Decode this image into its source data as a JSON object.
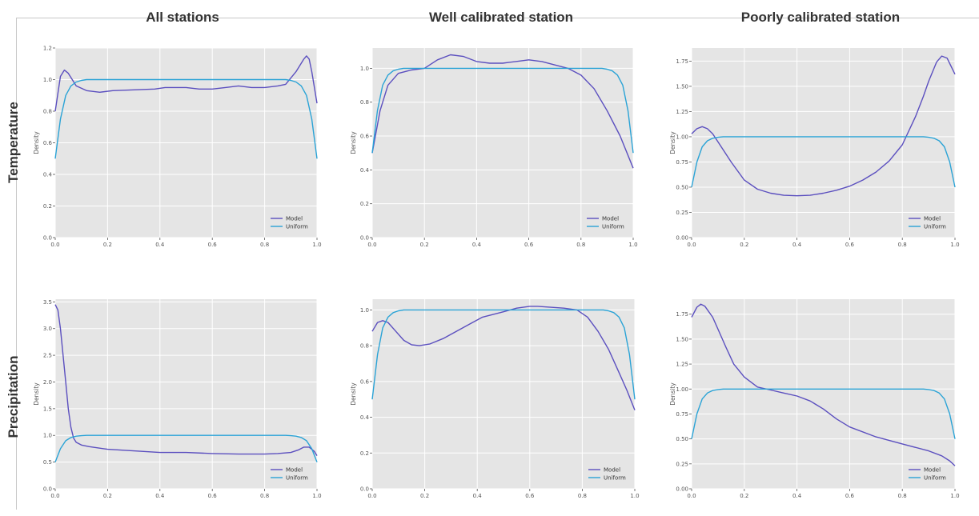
{
  "column_titles": [
    "All stations",
    "Well calibrated station",
    "Poorly calibrated station"
  ],
  "row_labels": [
    "Temperature",
    "Precipitation"
  ],
  "chart_data": [
    {
      "type": "line",
      "row": "Temperature",
      "column": "All stations",
      "xlabel": "",
      "ylabel": "Density",
      "xlim": [
        0,
        1
      ],
      "ylim": [
        0,
        1.2
      ],
      "xticks": [
        0.0,
        0.2,
        0.4,
        0.6,
        0.8,
        1.0
      ],
      "xtick_labels": [
        "0.0",
        "0.2",
        "0.4",
        "0.6",
        "0.8",
        "1.0"
      ],
      "yticks": [
        0.0,
        0.2,
        0.4,
        0.6,
        0.8,
        1.0,
        1.2
      ],
      "ytick_labels": [
        "0.0",
        "0.2",
        "0.4",
        "0.6",
        "0.8",
        "1.0",
        "1.2"
      ],
      "grid": true,
      "legend": "bottom-right",
      "series": [
        {
          "name": "Model",
          "color": "#5b4fbf",
          "x": [
            0,
            0.02,
            0.035,
            0.05,
            0.08,
            0.12,
            0.17,
            0.22,
            0.3,
            0.38,
            0.42,
            0.5,
            0.55,
            0.6,
            0.65,
            0.7,
            0.75,
            0.8,
            0.85,
            0.88,
            0.92,
            0.95,
            0.96,
            0.97,
            0.98,
            1.0
          ],
          "y": [
            0.8,
            1.02,
            1.06,
            1.04,
            0.96,
            0.93,
            0.92,
            0.93,
            0.935,
            0.94,
            0.95,
            0.95,
            0.94,
            0.94,
            0.95,
            0.96,
            0.95,
            0.95,
            0.96,
            0.97,
            1.05,
            1.13,
            1.15,
            1.13,
            1.05,
            0.85
          ]
        },
        {
          "name": "Uniform",
          "color": "#2aa3d6",
          "x": [
            0,
            0.02,
            0.04,
            0.06,
            0.08,
            0.1,
            0.12,
            0.5,
            0.88,
            0.9,
            0.92,
            0.94,
            0.96,
            0.98,
            1.0
          ],
          "y": [
            0.5,
            0.75,
            0.9,
            0.96,
            0.985,
            0.995,
            1.0,
            1.0,
            1.0,
            0.995,
            0.985,
            0.96,
            0.9,
            0.75,
            0.5
          ]
        }
      ]
    },
    {
      "type": "line",
      "row": "Temperature",
      "column": "Well calibrated station",
      "xlabel": "",
      "ylabel": "Density",
      "xlim": [
        0,
        1
      ],
      "ylim": [
        0,
        1.12
      ],
      "xticks": [
        0.0,
        0.2,
        0.4,
        0.6,
        0.8,
        1.0
      ],
      "xtick_labels": [
        "0.0",
        "0.2",
        "0.4",
        "0.6",
        "0.8",
        "1.0"
      ],
      "yticks": [
        0.0,
        0.2,
        0.4,
        0.6,
        0.8,
        1.0
      ],
      "ytick_labels": [
        "0.0",
        "0.2",
        "0.4",
        "0.6",
        "0.8",
        "1.0"
      ],
      "grid": true,
      "legend": "bottom-right",
      "series": [
        {
          "name": "Model",
          "color": "#5b4fbf",
          "x": [
            0,
            0.03,
            0.06,
            0.1,
            0.15,
            0.2,
            0.25,
            0.3,
            0.35,
            0.4,
            0.45,
            0.5,
            0.55,
            0.6,
            0.65,
            0.7,
            0.75,
            0.8,
            0.85,
            0.9,
            0.95,
            1.0
          ],
          "y": [
            0.5,
            0.75,
            0.9,
            0.97,
            0.99,
            1.0,
            1.05,
            1.08,
            1.07,
            1.04,
            1.03,
            1.03,
            1.04,
            1.05,
            1.04,
            1.02,
            1.0,
            0.96,
            0.88,
            0.75,
            0.6,
            0.41
          ]
        },
        {
          "name": "Uniform",
          "color": "#2aa3d6",
          "x": [
            0,
            0.02,
            0.04,
            0.06,
            0.08,
            0.1,
            0.12,
            0.5,
            0.88,
            0.9,
            0.92,
            0.94,
            0.96,
            0.98,
            1.0
          ],
          "y": [
            0.5,
            0.75,
            0.9,
            0.96,
            0.985,
            0.995,
            1.0,
            1.0,
            1.0,
            0.995,
            0.985,
            0.96,
            0.9,
            0.75,
            0.5
          ]
        }
      ]
    },
    {
      "type": "line",
      "row": "Temperature",
      "column": "Poorly calibrated station",
      "xlabel": "",
      "ylabel": "Density",
      "xlim": [
        0,
        1
      ],
      "ylim": [
        0,
        1.88
      ],
      "xticks": [
        0.0,
        0.2,
        0.4,
        0.6,
        0.8,
        1.0
      ],
      "xtick_labels": [
        "0.0",
        "0.2",
        "0.4",
        "0.6",
        "0.8",
        "1.0"
      ],
      "yticks": [
        0.0,
        0.25,
        0.5,
        0.75,
        1.0,
        1.25,
        1.5,
        1.75
      ],
      "ytick_labels": [
        "0.00",
        "0.25",
        "0.50",
        "0.75",
        "1.00",
        "1.25",
        "1.50",
        "1.75"
      ],
      "grid": true,
      "legend": "bottom-right",
      "series": [
        {
          "name": "Model",
          "color": "#5b4fbf",
          "x": [
            0,
            0.02,
            0.04,
            0.06,
            0.08,
            0.1,
            0.15,
            0.2,
            0.25,
            0.3,
            0.35,
            0.4,
            0.45,
            0.5,
            0.55,
            0.6,
            0.65,
            0.7,
            0.75,
            0.8,
            0.85,
            0.88,
            0.9,
            0.93,
            0.95,
            0.97,
            1.0
          ],
          "y": [
            1.03,
            1.08,
            1.1,
            1.08,
            1.03,
            0.95,
            0.75,
            0.57,
            0.48,
            0.44,
            0.42,
            0.415,
            0.42,
            0.44,
            0.47,
            0.51,
            0.57,
            0.65,
            0.76,
            0.92,
            1.2,
            1.4,
            1.55,
            1.74,
            1.8,
            1.78,
            1.62
          ]
        },
        {
          "name": "Uniform",
          "color": "#2aa3d6",
          "x": [
            0,
            0.02,
            0.04,
            0.06,
            0.08,
            0.1,
            0.12,
            0.5,
            0.88,
            0.9,
            0.92,
            0.94,
            0.96,
            0.98,
            1.0
          ],
          "y": [
            0.5,
            0.75,
            0.9,
            0.96,
            0.985,
            0.995,
            1.0,
            1.0,
            1.0,
            0.995,
            0.985,
            0.96,
            0.9,
            0.75,
            0.5
          ]
        }
      ]
    },
    {
      "type": "line",
      "row": "Precipitation",
      "column": "All stations",
      "xlabel": "",
      "ylabel": "Density",
      "xlim": [
        0,
        1
      ],
      "ylim": [
        0,
        3.55
      ],
      "xticks": [
        0.0,
        0.2,
        0.4,
        0.6,
        0.8,
        1.0
      ],
      "xtick_labels": [
        "0.0",
        "0.2",
        "0.4",
        "0.6",
        "0.8",
        "1.0"
      ],
      "yticks": [
        0.0,
        0.5,
        1.0,
        1.5,
        2.0,
        2.5,
        3.0,
        3.5
      ],
      "ytick_labels": [
        "0.0",
        "0.5",
        "1.0",
        "1.5",
        "2.0",
        "2.5",
        "3.0",
        "3.5"
      ],
      "grid": true,
      "legend": "bottom-right",
      "series": [
        {
          "name": "Model",
          "color": "#5b4fbf",
          "x": [
            0,
            0.01,
            0.02,
            0.03,
            0.04,
            0.05,
            0.06,
            0.07,
            0.08,
            0.1,
            0.13,
            0.2,
            0.3,
            0.4,
            0.5,
            0.6,
            0.7,
            0.8,
            0.85,
            0.9,
            0.93,
            0.95,
            0.97,
            0.99,
            1.0
          ],
          "y": [
            3.45,
            3.35,
            3.0,
            2.5,
            2.0,
            1.5,
            1.15,
            0.95,
            0.87,
            0.82,
            0.79,
            0.74,
            0.71,
            0.68,
            0.68,
            0.66,
            0.65,
            0.65,
            0.66,
            0.68,
            0.73,
            0.78,
            0.78,
            0.7,
            0.62
          ]
        },
        {
          "name": "Uniform",
          "color": "#2aa3d6",
          "x": [
            0,
            0.02,
            0.04,
            0.06,
            0.08,
            0.1,
            0.12,
            0.5,
            0.88,
            0.9,
            0.92,
            0.94,
            0.96,
            0.98,
            1.0
          ],
          "y": [
            0.5,
            0.75,
            0.9,
            0.96,
            0.985,
            0.995,
            1.0,
            1.0,
            1.0,
            0.995,
            0.985,
            0.96,
            0.9,
            0.75,
            0.5
          ]
        }
      ]
    },
    {
      "type": "line",
      "row": "Precipitation",
      "column": "Well calibrated station",
      "xlabel": "",
      "ylabel": "Density",
      "xlim": [
        0,
        1
      ],
      "ylim": [
        0,
        1.06
      ],
      "xticks": [
        0.0,
        0.2,
        0.4,
        0.6,
        0.8,
        1.0
      ],
      "xtick_labels": [
        "0.0",
        "0.2",
        "0.4",
        "0.6",
        "0.8",
        "1.0"
      ],
      "yticks": [
        0.0,
        0.2,
        0.4,
        0.6,
        0.8,
        1.0
      ],
      "ytick_labels": [
        "0.0",
        "0.2",
        "0.4",
        "0.6",
        "0.8",
        "1.0"
      ],
      "grid": true,
      "legend": "bottom-right",
      "series": [
        {
          "name": "Model",
          "color": "#5b4fbf",
          "x": [
            0,
            0.02,
            0.04,
            0.06,
            0.09,
            0.12,
            0.15,
            0.18,
            0.22,
            0.27,
            0.32,
            0.37,
            0.42,
            0.5,
            0.55,
            0.6,
            0.63,
            0.68,
            0.73,
            0.78,
            0.82,
            0.86,
            0.9,
            0.94,
            0.97,
            1.0
          ],
          "y": [
            0.88,
            0.93,
            0.94,
            0.93,
            0.88,
            0.83,
            0.805,
            0.8,
            0.81,
            0.84,
            0.88,
            0.92,
            0.96,
            0.99,
            1.01,
            1.02,
            1.02,
            1.015,
            1.01,
            1.0,
            0.96,
            0.88,
            0.78,
            0.65,
            0.55,
            0.44
          ]
        },
        {
          "name": "Uniform",
          "color": "#2aa3d6",
          "x": [
            0,
            0.02,
            0.04,
            0.06,
            0.08,
            0.1,
            0.12,
            0.5,
            0.88,
            0.9,
            0.92,
            0.94,
            0.96,
            0.98,
            1.0
          ],
          "y": [
            0.5,
            0.75,
            0.9,
            0.96,
            0.985,
            0.995,
            1.0,
            1.0,
            1.0,
            0.995,
            0.985,
            0.96,
            0.9,
            0.75,
            0.5
          ]
        }
      ]
    },
    {
      "type": "line",
      "row": "Precipitation",
      "column": "Poorly calibrated station",
      "xlabel": "",
      "ylabel": "Density",
      "xlim": [
        0,
        1
      ],
      "ylim": [
        0,
        1.9
      ],
      "xticks": [
        0.0,
        0.2,
        0.4,
        0.6,
        0.8,
        1.0
      ],
      "xtick_labels": [
        "0.0",
        "0.2",
        "0.4",
        "0.6",
        "0.8",
        "1.0"
      ],
      "yticks": [
        0.0,
        0.25,
        0.5,
        0.75,
        1.0,
        1.25,
        1.5,
        1.75
      ],
      "ytick_labels": [
        "0.00",
        "0.25",
        "0.50",
        "0.75",
        "1.00",
        "1.25",
        "1.50",
        "1.75"
      ],
      "grid": true,
      "legend": "bottom-right",
      "series": [
        {
          "name": "Model",
          "color": "#5b4fbf",
          "x": [
            0,
            0.02,
            0.035,
            0.05,
            0.08,
            0.1,
            0.13,
            0.16,
            0.2,
            0.25,
            0.3,
            0.35,
            0.4,
            0.45,
            0.5,
            0.55,
            0.6,
            0.7,
            0.8,
            0.9,
            0.95,
            0.98,
            1.0
          ],
          "y": [
            1.72,
            1.82,
            1.85,
            1.83,
            1.72,
            1.6,
            1.42,
            1.25,
            1.12,
            1.02,
            0.99,
            0.96,
            0.93,
            0.88,
            0.8,
            0.7,
            0.62,
            0.52,
            0.45,
            0.38,
            0.33,
            0.28,
            0.23
          ]
        },
        {
          "name": "Uniform",
          "color": "#2aa3d6",
          "x": [
            0,
            0.02,
            0.04,
            0.06,
            0.08,
            0.1,
            0.12,
            0.5,
            0.88,
            0.9,
            0.92,
            0.94,
            0.96,
            0.98,
            1.0
          ],
          "y": [
            0.5,
            0.75,
            0.9,
            0.96,
            0.985,
            0.995,
            1.0,
            1.0,
            1.0,
            0.995,
            0.985,
            0.96,
            0.9,
            0.75,
            0.5
          ]
        }
      ]
    }
  ]
}
